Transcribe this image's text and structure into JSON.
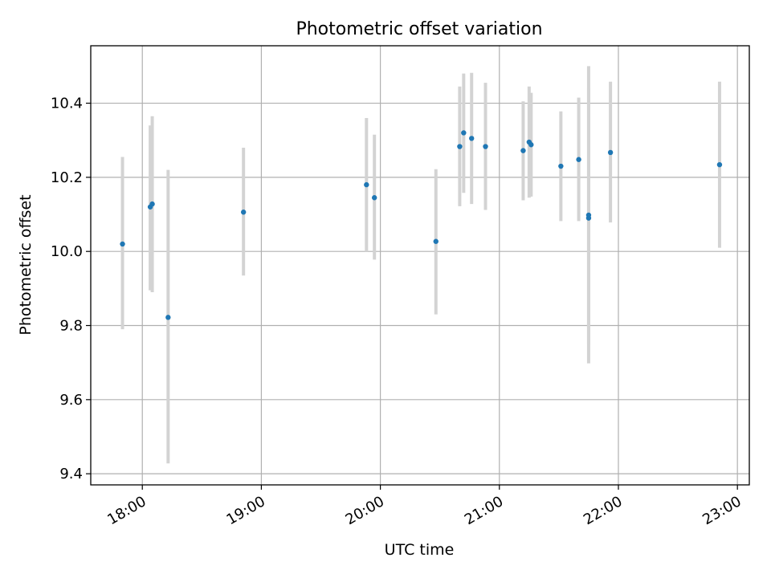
{
  "chart_data": {
    "type": "scatter",
    "title": "Photometric offset variation",
    "xlabel": "UTC time",
    "ylabel": "Photometric offset",
    "x_tick_labels": [
      "18:00",
      "19:00",
      "20:00",
      "21:00",
      "22:00",
      "23:00"
    ],
    "y_tick_labels": [
      "9.4",
      "9.6",
      "9.8",
      "10.0",
      "10.2",
      "10.4"
    ],
    "xlim": [
      "17:34",
      "23:06"
    ],
    "ylim": [
      9.37,
      10.555
    ],
    "grid": true,
    "series": [
      {
        "marker_color": "#1f77b4",
        "errorbar_color": "#d3d3d3",
        "points": [
          {
            "t": "17:50",
            "y": 10.02,
            "y_low": 9.79,
            "y_high": 10.255
          },
          {
            "t": "18:04",
            "y": 10.12,
            "y_low": 9.895,
            "y_high": 10.34
          },
          {
            "t": "18:05",
            "y": 10.128,
            "y_low": 9.89,
            "y_high": 10.365
          },
          {
            "t": "18:13",
            "y": 9.822,
            "y_low": 9.428,
            "y_high": 10.22
          },
          {
            "t": "18:51",
            "y": 10.106,
            "y_low": 9.935,
            "y_high": 10.28
          },
          {
            "t": "19:53",
            "y": 10.18,
            "y_low": 10.0,
            "y_high": 10.36
          },
          {
            "t": "19:57",
            "y": 10.145,
            "y_low": 9.978,
            "y_high": 10.315
          },
          {
            "t": "20:28",
            "y": 10.027,
            "y_low": 9.83,
            "y_high": 10.222
          },
          {
            "t": "20:40",
            "y": 10.283,
            "y_low": 10.122,
            "y_high": 10.445
          },
          {
            "t": "20:42",
            "y": 10.32,
            "y_low": 10.158,
            "y_high": 10.48
          },
          {
            "t": "20:46",
            "y": 10.305,
            "y_low": 10.128,
            "y_high": 10.482
          },
          {
            "t": "20:53",
            "y": 10.283,
            "y_low": 10.112,
            "y_high": 10.455
          },
          {
            "t": "21:12",
            "y": 10.272,
            "y_low": 10.138,
            "y_high": 10.405
          },
          {
            "t": "21:15",
            "y": 10.295,
            "y_low": 10.145,
            "y_high": 10.445
          },
          {
            "t": "21:16",
            "y": 10.288,
            "y_low": 10.148,
            "y_high": 10.428
          },
          {
            "t": "21:31",
            "y": 10.23,
            "y_low": 10.082,
            "y_high": 10.378
          },
          {
            "t": "21:40",
            "y": 10.248,
            "y_low": 10.082,
            "y_high": 10.415
          },
          {
            "t": "21:45",
            "y": 10.09,
            "y_low": 9.698,
            "y_high": 10.5
          },
          {
            "t": "21:45",
            "y": 10.098,
            "y_low": 9.75,
            "y_high": 10.44
          },
          {
            "t": "21:56",
            "y": 10.267,
            "y_low": 10.078,
            "y_high": 10.458
          },
          {
            "t": "22:51",
            "y": 10.234,
            "y_low": 10.01,
            "y_high": 10.458
          }
        ]
      }
    ]
  }
}
